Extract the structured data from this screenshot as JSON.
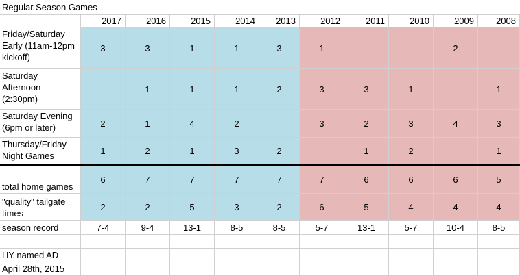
{
  "title": "Regular Season Games",
  "years": [
    "2017",
    "2016",
    "2015",
    "2014",
    "2013",
    "2012",
    "2011",
    "2010",
    "2009",
    "2008"
  ],
  "colors": {
    "blue": "#b7dde8",
    "red": "#e6b8b7",
    "white": "#ffffff"
  },
  "rows": [
    {
      "label": "Friday/Saturday Early (11am-12pm kickoff)",
      "values": [
        "3",
        "3",
        "1",
        "1",
        "3",
        "1",
        "",
        "",
        "2",
        ""
      ]
    },
    {
      "label": "Saturday Afternoon (2:30pm)",
      "values": [
        "",
        "1",
        "1",
        "1",
        "2",
        "3",
        "3",
        "1",
        "",
        "1"
      ]
    },
    {
      "label": "Saturday Evening (6pm or later)",
      "values": [
        "2",
        "1",
        "4",
        "2",
        "",
        "3",
        "2",
        "3",
        "4",
        "3"
      ]
    },
    {
      "label": "Thursday/Friday Night Games",
      "values": [
        "1",
        "2",
        "1",
        "3",
        "2",
        "",
        "1",
        "2",
        "",
        "1"
      ]
    },
    {
      "label": "total home games",
      "values": [
        "6",
        "7",
        "7",
        "7",
        "7",
        "7",
        "6",
        "6",
        "6",
        "5"
      ]
    },
    {
      "label": "\"quality\" tailgate times",
      "values": [
        "2",
        "2",
        "5",
        "3",
        "2",
        "6",
        "5",
        "4",
        "4",
        "4"
      ]
    },
    {
      "label": "season record",
      "values": [
        "7-4",
        "9-4",
        "13-1",
        "8-5",
        "8-5",
        "5-7",
        "13-1",
        "5-7",
        "10-4",
        "8-5"
      ]
    }
  ],
  "note": {
    "line1": "HY named AD",
    "line2": "April 28th, 2015"
  }
}
